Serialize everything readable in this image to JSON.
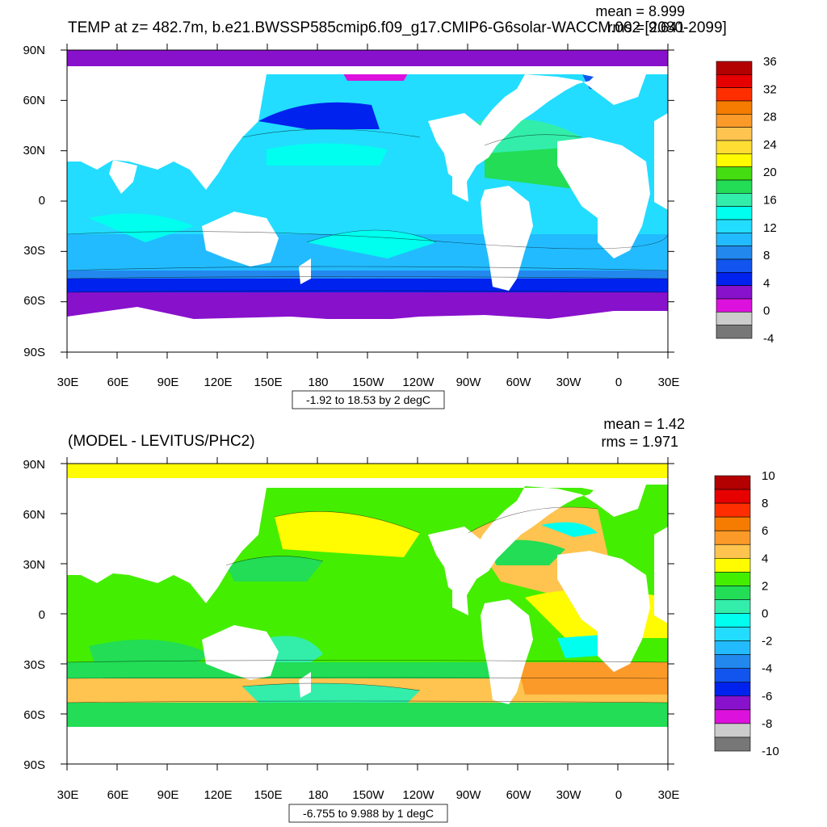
{
  "top_panel": {
    "title": "TEMP at z= 482.7m, b.e21.BWSSP585cmip6.f09_g17.CMIP6-G6solar-WACCM.002 [2080-2099]",
    "mean_label": "mean = 8.999",
    "rms_label": "rms = 9.641",
    "contour_info": "-1.92 to 18.53 by 2 degC",
    "lat_labels": [
      "90N",
      "60N",
      "30N",
      "0",
      "30S",
      "60S",
      "90S"
    ],
    "lon_labels": [
      "30E",
      "60E",
      "90E",
      "120E",
      "150E",
      "180",
      "150W",
      "120W",
      "90W",
      "60W",
      "30W",
      "0",
      "30E"
    ],
    "colorbar": {
      "labels": [
        "36",
        "32",
        "28",
        "24",
        "20",
        "16",
        "12",
        "8",
        "4",
        "0",
        "-4"
      ],
      "colors": [
        "#b30000",
        "#e60000",
        "#ff2e00",
        "#f57c00",
        "#fb9a29",
        "#fec44f",
        "#ffdd33",
        "#fffb00",
        "#44dd11",
        "#22dd55",
        "#33eeaa",
        "#00ffee",
        "#22ddff",
        "#22bbff",
        "#2288ee",
        "#1155ee",
        "#0022ee",
        "#8811cc",
        "#dd11dd",
        "#cccccc",
        "#777777"
      ]
    }
  },
  "bottom_panel": {
    "title": "(MODEL - LEVITUS/PHC2)",
    "mean_label": "mean = 1.42",
    "rms_label": "rms = 1.971",
    "contour_info": "-6.755 to 9.988 by 1 degC",
    "lat_labels": [
      "90N",
      "60N",
      "30N",
      "0",
      "30S",
      "60S",
      "90S"
    ],
    "lon_labels": [
      "30E",
      "60E",
      "90E",
      "120E",
      "150E",
      "180",
      "150W",
      "120W",
      "90W",
      "60W",
      "30W",
      "0",
      "30E"
    ],
    "colorbar": {
      "labels": [
        "10",
        "8",
        "6",
        "4",
        "2",
        "0",
        "-2",
        "-4",
        "-6",
        "-8",
        "-10"
      ],
      "colors": [
        "#b30000",
        "#e60000",
        "#ff2e00",
        "#f57c00",
        "#fb9a29",
        "#fec44f",
        "#fffb00",
        "#44ee00",
        "#22dd55",
        "#33eeaa",
        "#00ffee",
        "#22ddff",
        "#22bbff",
        "#2288ee",
        "#1155ee",
        "#0022ee",
        "#8811cc",
        "#dd11dd",
        "#cccccc",
        "#777777"
      ]
    }
  }
}
